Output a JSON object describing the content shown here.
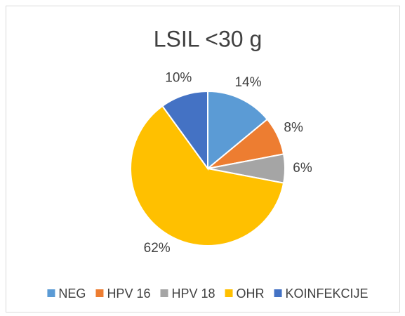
{
  "chart_data": {
    "type": "pie",
    "title": "LSIL <30 g",
    "categories": [
      "NEG",
      "HPV 16",
      "HPV 18",
      "OHR",
      "KOINFEKCIJE"
    ],
    "values": [
      14,
      8,
      6,
      62,
      10
    ],
    "value_labels": [
      "14%",
      "8%",
      "6%",
      "62%",
      "10%"
    ],
    "colors": [
      "#5B9BD5",
      "#ED7D31",
      "#A5A5A5",
      "#FFC000",
      "#4472C4"
    ],
    "legend": "bottom"
  }
}
